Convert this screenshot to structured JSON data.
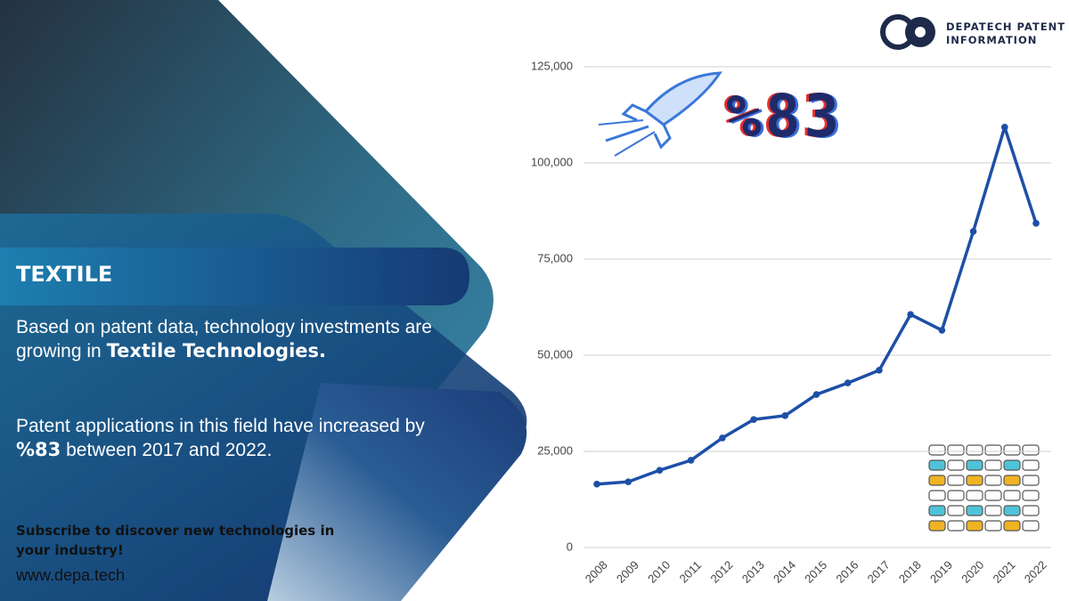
{
  "brand": {
    "line1": "DEPATECH PATENT",
    "line2": "INFORMATION"
  },
  "panel": {
    "heading": "TEXTILE",
    "paragraph1": {
      "text": "Based on patent data, technology investments are growing in ",
      "bold": "Textile Technologies."
    },
    "paragraph2": {
      "text": "Patent applications in this field have increased by ",
      "bold": "%83",
      "tail": " between 2017 and 2022."
    },
    "cta": "Subscribe to discover new technologies in your industry!",
    "url": "www.depa.tech"
  },
  "badge": "%83",
  "chart_data": {
    "type": "line",
    "categories": [
      "2008",
      "2009",
      "2010",
      "2011",
      "2012",
      "2013",
      "2014",
      "2015",
      "2016",
      "2017",
      "2018",
      "2019",
      "2020",
      "2021",
      "2022"
    ],
    "values": [
      16500,
      17100,
      20100,
      22700,
      28500,
      33300,
      34300,
      39800,
      42800,
      46100,
      60600,
      56500,
      82200,
      109300,
      84300
    ],
    "color": "#1d4fa8",
    "ylim": [
      0,
      125000
    ],
    "yticks": [
      0,
      {
        "value": 25000,
        "label": "25,000"
      },
      {
        "value": 50000,
        "label": "50,000"
      },
      {
        "value": 75000,
        "label": "75,000"
      },
      {
        "value": 100000,
        "label": "100,000"
      },
      {
        "value": 125000,
        "label": "125,000"
      }
    ],
    "grid": true
  }
}
